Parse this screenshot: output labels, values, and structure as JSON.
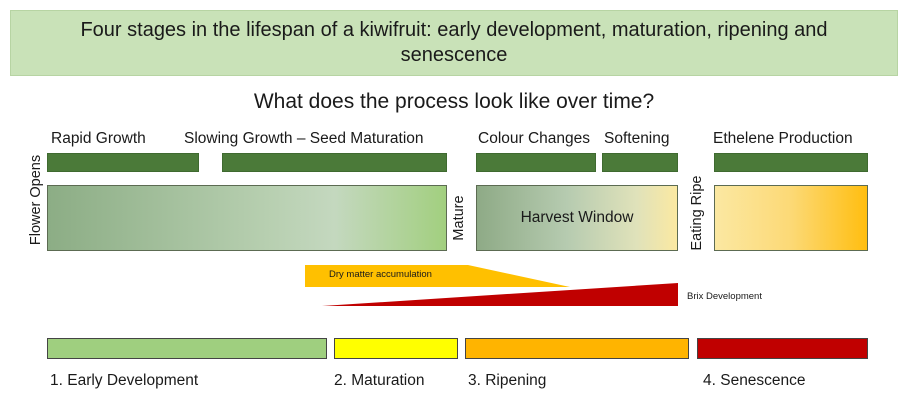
{
  "title": "Four stages in the lifespan of a kiwifruit: early development, maturation, ripening and senescence",
  "subtitle": "What does the process look like over time?",
  "process_labels": [
    "Rapid Growth",
    "Slowing Growth – Seed Maturation",
    "Colour Changes",
    "Softening",
    "Ethelene Production"
  ],
  "vertical_labels": {
    "flower_opens": "Flower Opens",
    "mature": "Mature",
    "eating_ripe": "Eating Ripe"
  },
  "harvest_window": "Harvest Window",
  "dry_matter": "Dry matter accumulation",
  "brix": "Brix Development",
  "stages": [
    "1. Early Development",
    "2. Maturation",
    "3. Ripening",
    "4. Senescence"
  ],
  "colors": {
    "banner": "#c9e2b8",
    "process_bar": "#4b7a39",
    "stage_early": "#9fcf7f",
    "stage_maturation": "#ffff00",
    "stage_ripening": "#ffb400",
    "stage_senescence": "#c00000",
    "dry_matter": "#ffc000",
    "brix": "#c00000"
  }
}
